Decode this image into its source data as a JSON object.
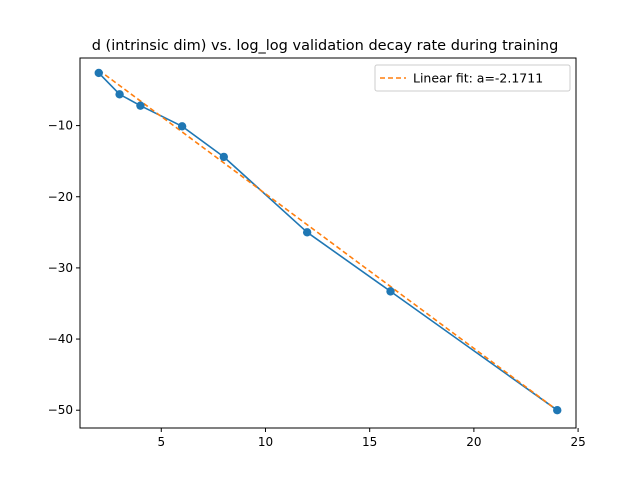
{
  "chart_data": {
    "type": "line",
    "title": "d (intrinsic dim) vs. log_log validation decay rate during training",
    "xlabel": "",
    "ylabel": "",
    "xlim": [
      1.1,
      24.9
    ],
    "ylim": [
      -52.5,
      -0.5
    ],
    "xticks": [
      5,
      10,
      15,
      20,
      25
    ],
    "yticks": [
      -10,
      -20,
      -30,
      -40,
      -50
    ],
    "xtick_labels": [
      "5",
      "10",
      "15",
      "20",
      "25"
    ],
    "ytick_labels": [
      "−10",
      "−20",
      "−30",
      "−40",
      "−50"
    ],
    "grid": false,
    "legend_position": "top-right",
    "series": [
      {
        "type": "line-with-markers",
        "color": "#1f77b4",
        "x": [
          2,
          3,
          4,
          6,
          8,
          12,
          16,
          24
        ],
        "y": [
          -2.6,
          -5.6,
          -7.2,
          -10.1,
          -14.4,
          -25.0,
          -33.3,
          -50.0
        ]
      },
      {
        "name": "Linear fit: a=-2.1711",
        "type": "dashed-line",
        "color": "#ff7f0e",
        "x": [
          2,
          24
        ],
        "y": [
          -2.2,
          -50.0
        ]
      }
    ]
  }
}
